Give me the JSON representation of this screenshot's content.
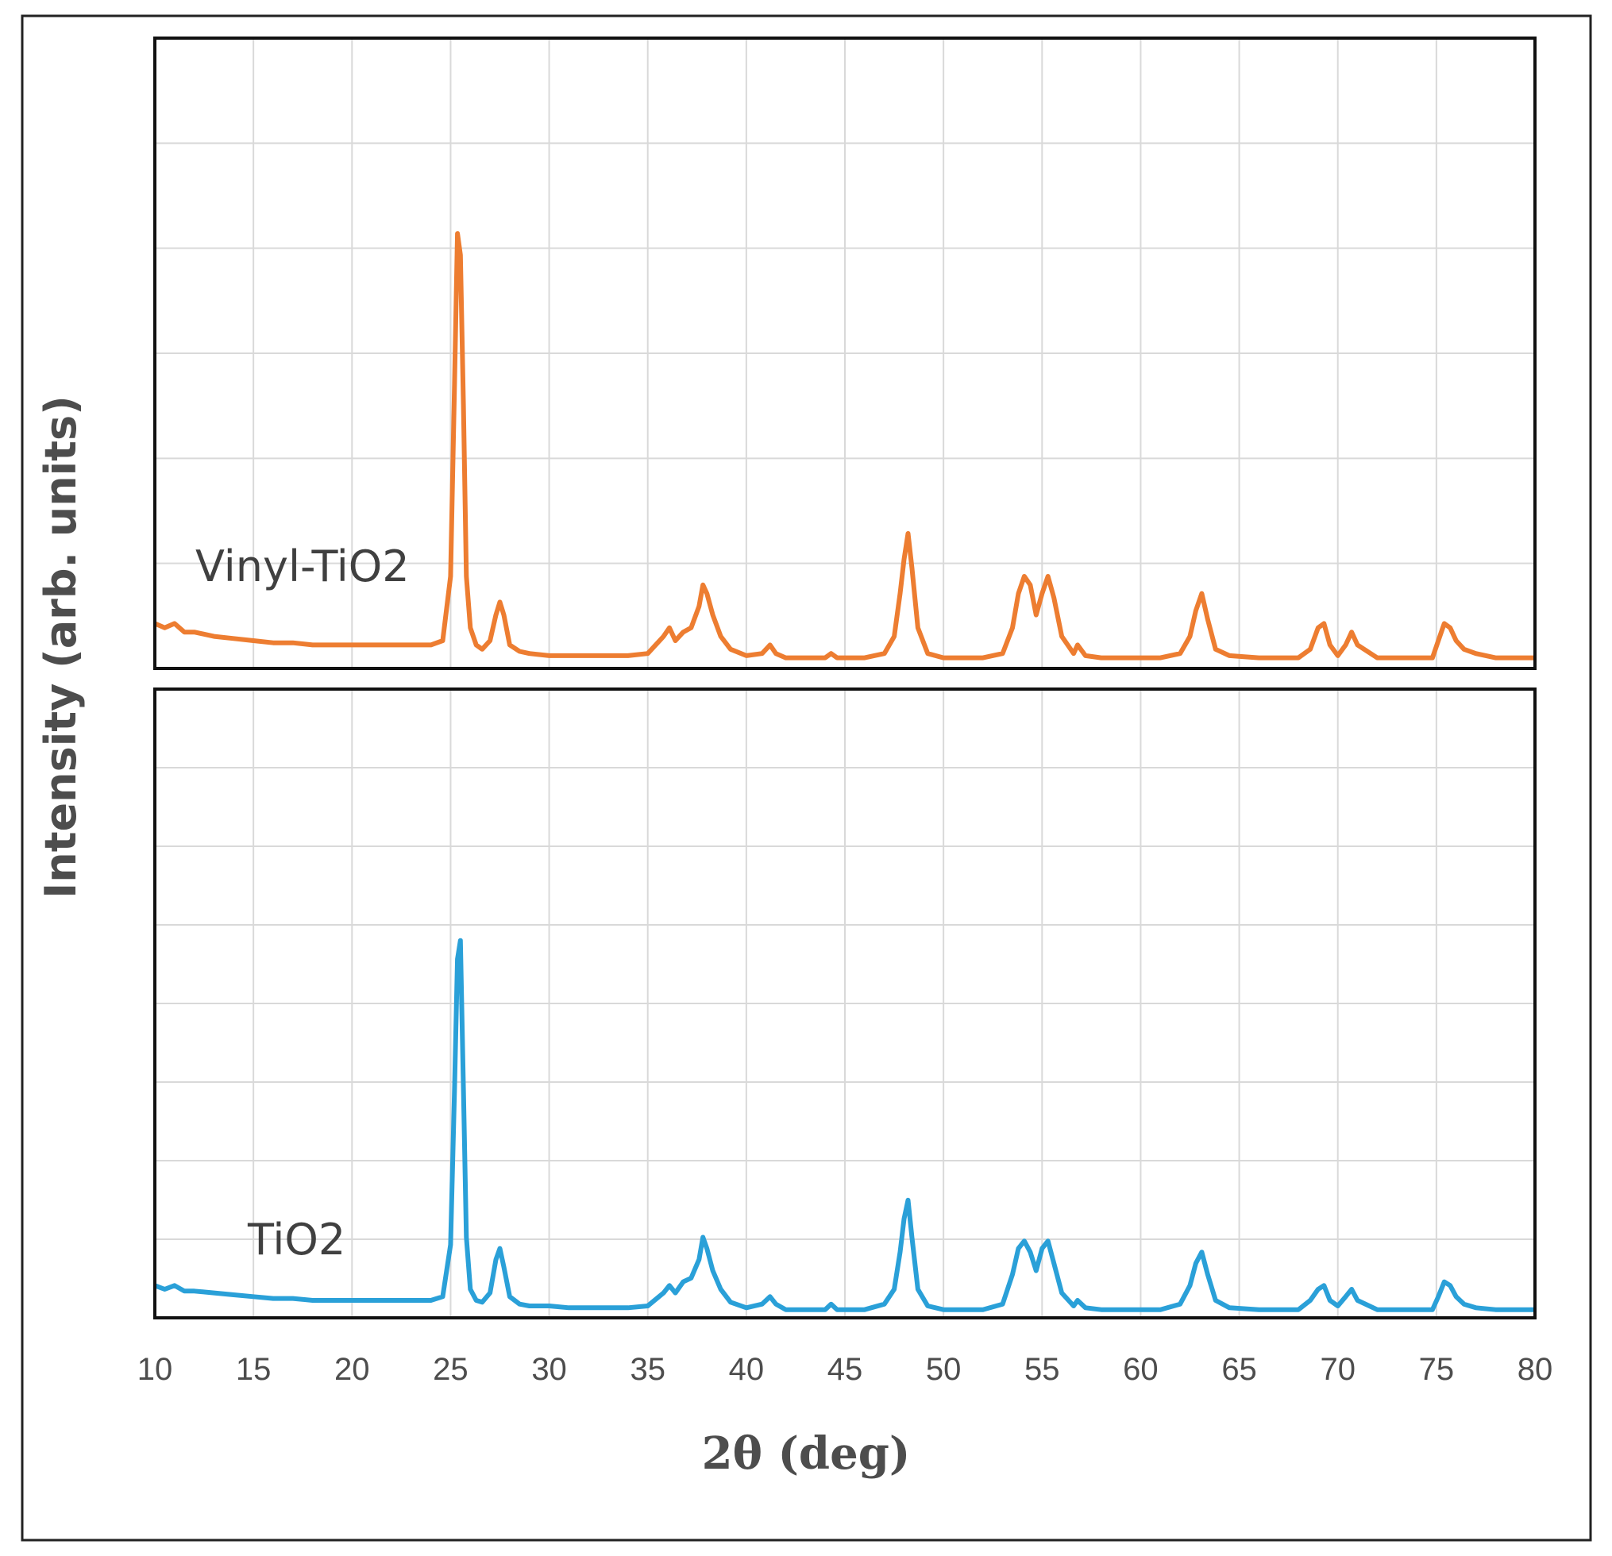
{
  "chart_data": {
    "type": "line",
    "xlabel": "2θ (deg)",
    "ylabel": "Intensity (arb. units)",
    "xlim": [
      10,
      80
    ],
    "x_ticks": [
      10,
      15,
      20,
      25,
      30,
      35,
      40,
      45,
      50,
      55,
      60,
      65,
      70,
      75,
      80
    ],
    "ylim": [
      0,
      100
    ],
    "grid": true,
    "panels": [
      {
        "name": "Vinyl-TiO2",
        "label": "Vinyl-TiO2",
        "color": "#ED7D31",
        "series": [
          {
            "name": "Vinyl-TiO2",
            "x": [
              10,
              10.5,
              11,
              11.5,
              12,
              13,
              14,
              15,
              16,
              17,
              18,
              19,
              20,
              21,
              22,
              23,
              24,
              24.6,
              25,
              25.2,
              25.35,
              25.5,
              25.65,
              25.8,
              26,
              26.3,
              26.6,
              27,
              27.3,
              27.5,
              27.7,
              28,
              28.5,
              29,
              30,
              31,
              32,
              33,
              34,
              35,
              35.8,
              36.1,
              36.4,
              36.8,
              37.2,
              37.6,
              37.8,
              38.0,
              38.3,
              38.7,
              39.2,
              40,
              40.8,
              41.2,
              41.5,
              42,
              43,
              44,
              44.3,
              44.6,
              46,
              47,
              47.5,
              47.8,
              48.0,
              48.2,
              48.4,
              48.7,
              49.2,
              50,
              51,
              52,
              53,
              53.5,
              53.8,
              54.1,
              54.4,
              54.7,
              55.0,
              55.3,
              55.6,
              56,
              56.6,
              56.8,
              57.2,
              58,
              60,
              61,
              62,
              62.5,
              62.8,
              63.1,
              63.4,
              63.8,
              64.5,
              66,
              68,
              68.6,
              69,
              69.3,
              69.6,
              70,
              70.4,
              70.7,
              71,
              72,
              74,
              74.8,
              75.1,
              75.4,
              75.7,
              76.0,
              76.4,
              77,
              78,
              79,
              80
            ],
            "y": [
              9,
              8,
              9,
              7,
              7,
              6,
              5.5,
              5,
              4.5,
              4.5,
              4,
              4,
              4,
              4,
              4,
              4,
              4,
              5,
              20,
              65,
              100,
              95,
              60,
              20,
              8,
              4,
              3,
              5,
              11,
              14,
              11,
              4,
              2.5,
              2,
              1.5,
              1.5,
              1.5,
              1.5,
              1.5,
              2,
              6,
              8,
              5,
              7,
              8,
              13,
              18,
              16,
              11,
              6,
              3,
              1.5,
              2,
              4,
              2,
              1,
              1,
              1,
              2,
              1,
              1,
              2,
              6,
              16,
              24,
              30,
              22,
              8,
              2,
              1,
              1,
              1,
              2,
              8,
              16,
              20,
              18,
              11,
              16,
              20,
              15,
              6,
              2,
              4,
              1.5,
              1,
              1,
              1,
              2,
              6,
              12,
              16,
              10,
              3,
              1.5,
              1,
              1,
              3,
              8,
              9,
              4,
              1.5,
              4,
              7,
              4,
              1,
              1,
              1,
              5,
              9,
              8,
              5,
              3,
              2,
              1,
              1,
              1
            ]
          }
        ]
      },
      {
        "name": "TiO2",
        "label": "TiO2",
        "color": "#2AA0D8",
        "series": [
          {
            "name": "TiO2",
            "x": [
              10,
              10.5,
              11,
              11.5,
              12,
              13,
              14,
              15,
              16,
              17,
              18,
              19,
              20,
              21,
              22,
              23,
              24,
              24.6,
              25,
              25.2,
              25.35,
              25.5,
              25.65,
              25.8,
              26,
              26.3,
              26.6,
              27,
              27.3,
              27.5,
              27.7,
              28,
              28.5,
              29,
              30,
              31,
              32,
              33,
              34,
              35,
              35.8,
              36.1,
              36.4,
              36.8,
              37.2,
              37.6,
              37.8,
              38.0,
              38.3,
              38.7,
              39.2,
              40,
              40.8,
              41.2,
              41.5,
              42,
              43,
              44,
              44.3,
              44.6,
              46,
              47,
              47.5,
              47.8,
              48.0,
              48.2,
              48.4,
              48.7,
              49.2,
              50,
              51,
              52,
              53,
              53.5,
              53.8,
              54.1,
              54.4,
              54.7,
              55.0,
              55.3,
              55.6,
              56,
              56.6,
              56.8,
              57.2,
              58,
              60,
              61,
              62,
              62.5,
              62.8,
              63.1,
              63.4,
              63.8,
              64.5,
              66,
              68,
              68.6,
              69,
              69.3,
              69.6,
              70,
              70.4,
              70.7,
              71,
              72,
              74,
              74.8,
              75.1,
              75.4,
              75.7,
              76.0,
              76.4,
              77,
              78,
              79,
              80
            ],
            "y": [
              7,
              6,
              7,
              5.5,
              5.5,
              5,
              4.5,
              4,
              3.5,
              3.5,
              3,
              3,
              3,
              3,
              3,
              3,
              3,
              4,
              18,
              60,
              95,
              100,
              60,
              20,
              6,
              3,
              2.5,
              5,
              14,
              17,
              12,
              4,
              2,
              1.5,
              1.5,
              1,
              1,
              1,
              1,
              1.5,
              5,
              7,
              5,
              8,
              9,
              14,
              20,
              17,
              11,
              6,
              2.5,
              1,
              2,
              4,
              2,
              0.5,
              0.5,
              0.5,
              2,
              0.5,
              0.5,
              2,
              6,
              16,
              25,
              30,
              20,
              6,
              1.5,
              0.5,
              0.5,
              0.5,
              2,
              10,
              17,
              19,
              16,
              11,
              17,
              19,
              13,
              5,
              1.5,
              3,
              1,
              0.5,
              0.5,
              0.5,
              2,
              7,
              13,
              16,
              10,
              3,
              1,
              0.5,
              0.5,
              3,
              6,
              7,
              3,
              1.5,
              4,
              6,
              3,
              0.5,
              0.5,
              0.5,
              4,
              8,
              7,
              4,
              2,
              1,
              0.5,
              0.5,
              0.5
            ]
          }
        ]
      }
    ]
  }
}
